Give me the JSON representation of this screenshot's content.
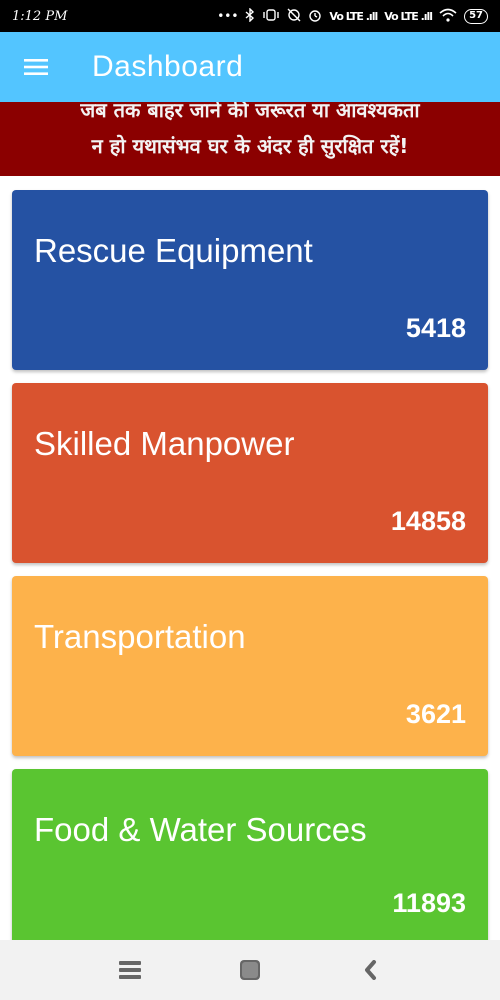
{
  "status_bar": {
    "time": "1:12 PM",
    "icons": [
      "dots-icon",
      "bluetooth-icon",
      "vibrate-icon",
      "alarm-off-icon",
      "alarm-icon",
      "signal-icon",
      "signal-icon",
      "wifi-icon",
      "battery-icon"
    ],
    "signal_1": "Vo LTE .ıll",
    "signal_2": "Vo LTE .ıll",
    "battery": "57"
  },
  "app_bar": {
    "title": "Dashboard",
    "menu_icon": "hamburger-menu-icon",
    "background": "#53c5ff"
  },
  "banner": {
    "line_1": "जब तक बाहर जाने की जरूरत या आवश्यकता",
    "line_2": "न हो यथासंभव घर के अंदर ही सुरक्षित रहें!",
    "background": "#8b0000"
  },
  "cards": [
    {
      "title": "Rescue Equipment",
      "value": "5418",
      "color": "#2552a3"
    },
    {
      "title": "Skilled Manpower",
      "value": "14858",
      "color": "#d9532f"
    },
    {
      "title": "Transportation",
      "value": "3621",
      "color": "#fdb24b"
    },
    {
      "title": "Food & Water Sources",
      "value": "11893",
      "color": "#5ac531"
    }
  ],
  "nav_bar": {
    "icons": [
      "recent-apps-icon",
      "home-icon",
      "back-icon"
    ]
  }
}
